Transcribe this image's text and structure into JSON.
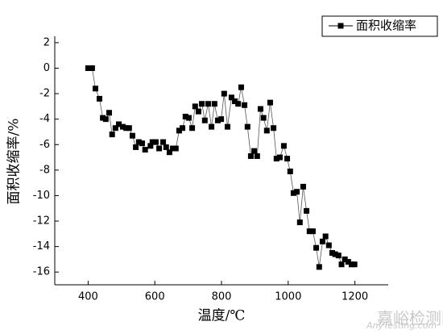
{
  "chart_data": {
    "type": "line",
    "xlabel": "温度/℃",
    "ylabel": "面积收缩率/%",
    "x": [
      400,
      412,
      422,
      434,
      444,
      453,
      463,
      472,
      482,
      492,
      504,
      514,
      523,
      533,
      543,
      552,
      562,
      571,
      587,
      593,
      603,
      613,
      625,
      634,
      644,
      654,
      663,
      673,
      683,
      692,
      702,
      712,
      721,
      731,
      741,
      750,
      760,
      770,
      779,
      789,
      799,
      808,
      818,
      830,
      840,
      850,
      859,
      869,
      878,
      888,
      898,
      907,
      917,
      926,
      936,
      946,
      956,
      965,
      975,
      987,
      997,
      1006,
      1016,
      1026,
      1035,
      1045,
      1055,
      1064,
      1074,
      1084,
      1093,
      1103,
      1112,
      1122,
      1132,
      1141,
      1151,
      1160,
      1170,
      1180,
      1190,
      1199
    ],
    "series": [
      {
        "name": "面积收缩率",
        "color": "#000000",
        "values": [
          0,
          0,
          -1.6,
          -2.4,
          -3.9,
          -4.0,
          -3.5,
          -5.2,
          -4.7,
          -4.4,
          -4.6,
          -4.7,
          -4.7,
          -5.3,
          -6.2,
          -5.8,
          -5.9,
          -6.4,
          -6.1,
          -5.8,
          -5.8,
          -6.3,
          -5.8,
          -6.2,
          -6.6,
          -6.3,
          -6.3,
          -4.9,
          -4.7,
          -3.8,
          -3.9,
          -4.7,
          -3.0,
          -3.4,
          -2.8,
          -4.1,
          -2.8,
          -4.6,
          -2.8,
          -4.1,
          -4.0,
          -2.0,
          -4.6,
          -2.3,
          -2.6,
          -2.8,
          -1.5,
          -2.9,
          -4.6,
          -6.9,
          -6.5,
          -6.9,
          -3.2,
          -3.9,
          -4.9,
          -2.7,
          -4.7,
          -7.1,
          -7.0,
          -6.1,
          -7.1,
          -8.1,
          -9.8,
          -9.7,
          -12.1,
          -9.3,
          -11.2,
          -12.8,
          -12.8,
          -14.1,
          -15.6,
          -13.6,
          -13.2,
          -13.9,
          -14.5,
          -14.6,
          -14.7,
          -15.4,
          -15.0,
          -15.2,
          -15.4,
          -15.4
        ]
      }
    ],
    "xlim": [
      300,
      1300
    ],
    "xticks": [
      400,
      600,
      800,
      1000,
      1200
    ],
    "ylim": [
      -17,
      2.5
    ],
    "yticks": [
      2,
      0,
      -2,
      -4,
      -6,
      -8,
      -10,
      -12,
      -14,
      -16
    ],
    "legend": "top-right",
    "watermark": [
      "嘉峪检测网",
      "AnyTesting.com"
    ]
  }
}
